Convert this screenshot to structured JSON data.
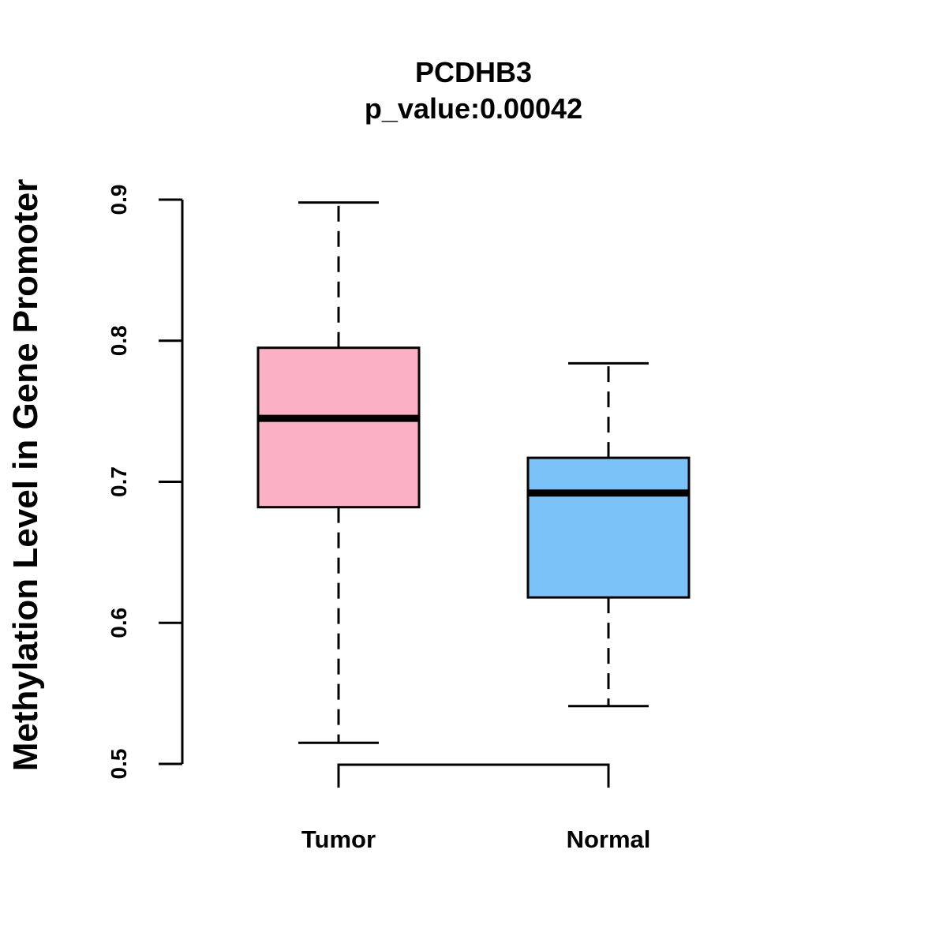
{
  "chart_data": {
    "type": "boxplot",
    "title": "PCDHB3",
    "subtitle": "p_value:0.00042",
    "ylabel": "Methylation Level in Gene Promoter",
    "xlabel": "",
    "ylim": [
      0.5,
      0.9
    ],
    "yticks": [
      0.5,
      0.6,
      0.7,
      0.8,
      0.9
    ],
    "ytick_labels": [
      "0.5",
      "0.6",
      "0.7",
      "0.8",
      "0.9"
    ],
    "grid": false,
    "categories": [
      "Tumor",
      "Normal"
    ],
    "series": [
      {
        "name": "Tumor",
        "min": 0.515,
        "q1": 0.682,
        "median": 0.745,
        "q3": 0.795,
        "max": 0.898,
        "color": "#fbb0c3"
      },
      {
        "name": "Normal",
        "min": 0.541,
        "q1": 0.618,
        "median": 0.692,
        "q3": 0.717,
        "max": 0.784,
        "color": "#7ac2f8"
      }
    ],
    "annotations": [
      {
        "type": "comparison-bracket",
        "between": [
          "Tumor",
          "Normal"
        ]
      }
    ]
  }
}
